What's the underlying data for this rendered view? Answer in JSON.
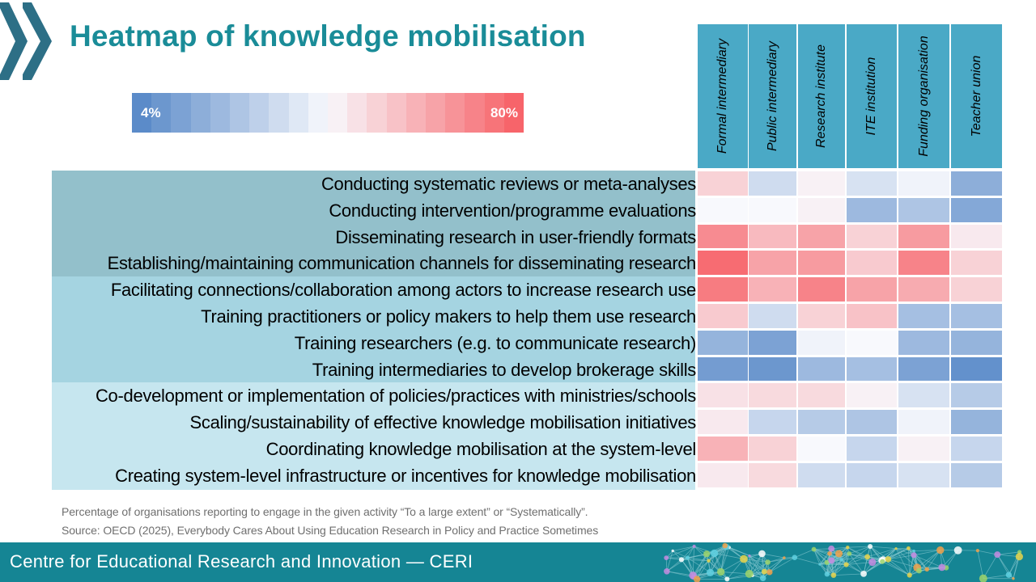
{
  "slide": {
    "title": "Heatmap of knowledge mobilisation",
    "note_line1": "Percentage of organisations reporting to engage in the given activity “To a large extent” or “Systematically”.",
    "note_line2": "Source: OECD (2025), Everybody Cares About Using Education Research in Policy and Practice Sometimes",
    "footer": "Centre for Educational Research and Innovation — CERI"
  },
  "legend": {
    "min_label": "4%",
    "max_label": "80%",
    "min": 4,
    "max": 80
  },
  "colors": {
    "title": "#1a8c98",
    "header_bg": "#4aa9c6",
    "band_1": "#93c0cb",
    "band_2": "#a5d4e1",
    "band_3": "#c6e6ef",
    "footer_bg": "#158594",
    "low": "#5b8bc9",
    "mid": "#f8f9fd",
    "high": "#f7646a"
  },
  "chart_data": {
    "type": "heatmap",
    "title": "Heatmap of knowledge mobilisation",
    "value_unit": "%",
    "range": [
      4,
      80
    ],
    "columns": [
      "Formal intermediary",
      "Public intermediary",
      "Research institute",
      "ITE institution",
      "Funding organisation",
      "Teacher union"
    ],
    "rows": [
      "Conducting systematic reviews or meta-analyses",
      "Conducting intervention/programme evaluations",
      "Disseminating research in user-friendly formats",
      "Establishing/maintaining communication channels for disseminating research",
      "Facilitating connections/collaboration among actors to increase research use",
      "Training practitioners or policy makers to help them use research",
      "Training researchers (e.g. to communicate research)",
      "Training intermediaries to develop brokerage skills",
      "Co-development or implementation of policies/practices with ministries/schools",
      "Scaling/sustainability of effective knowledge mobilisation initiatives",
      "Coordinating knowledge mobilisation at the system-level",
      "Creating system-level infrastructure or incentives for knowledge mobilisation"
    ],
    "row_groups": [
      {
        "rows": [
          0,
          1,
          2,
          3
        ]
      },
      {
        "rows": [
          4,
          5,
          6,
          7
        ]
      },
      {
        "rows": [
          8,
          9,
          10,
          11
        ]
      }
    ],
    "values": [
      [
        52,
        32,
        44,
        34,
        40,
        16
      ],
      [
        42,
        42,
        44,
        20,
        24,
        14
      ],
      [
        70,
        58,
        64,
        52,
        66,
        46
      ],
      [
        78,
        64,
        66,
        54,
        72,
        52
      ],
      [
        74,
        60,
        72,
        64,
        62,
        52
      ],
      [
        54,
        32,
        52,
        56,
        22,
        22
      ],
      [
        18,
        12,
        40,
        42,
        20,
        18
      ],
      [
        10,
        8,
        20,
        22,
        12,
        6
      ],
      [
        48,
        50,
        50,
        44,
        34,
        26
      ],
      [
        46,
        30,
        26,
        24,
        40,
        18
      ],
      [
        60,
        52,
        42,
        30,
        44,
        30
      ],
      [
        46,
        50,
        32,
        30,
        34,
        26
      ]
    ]
  }
}
